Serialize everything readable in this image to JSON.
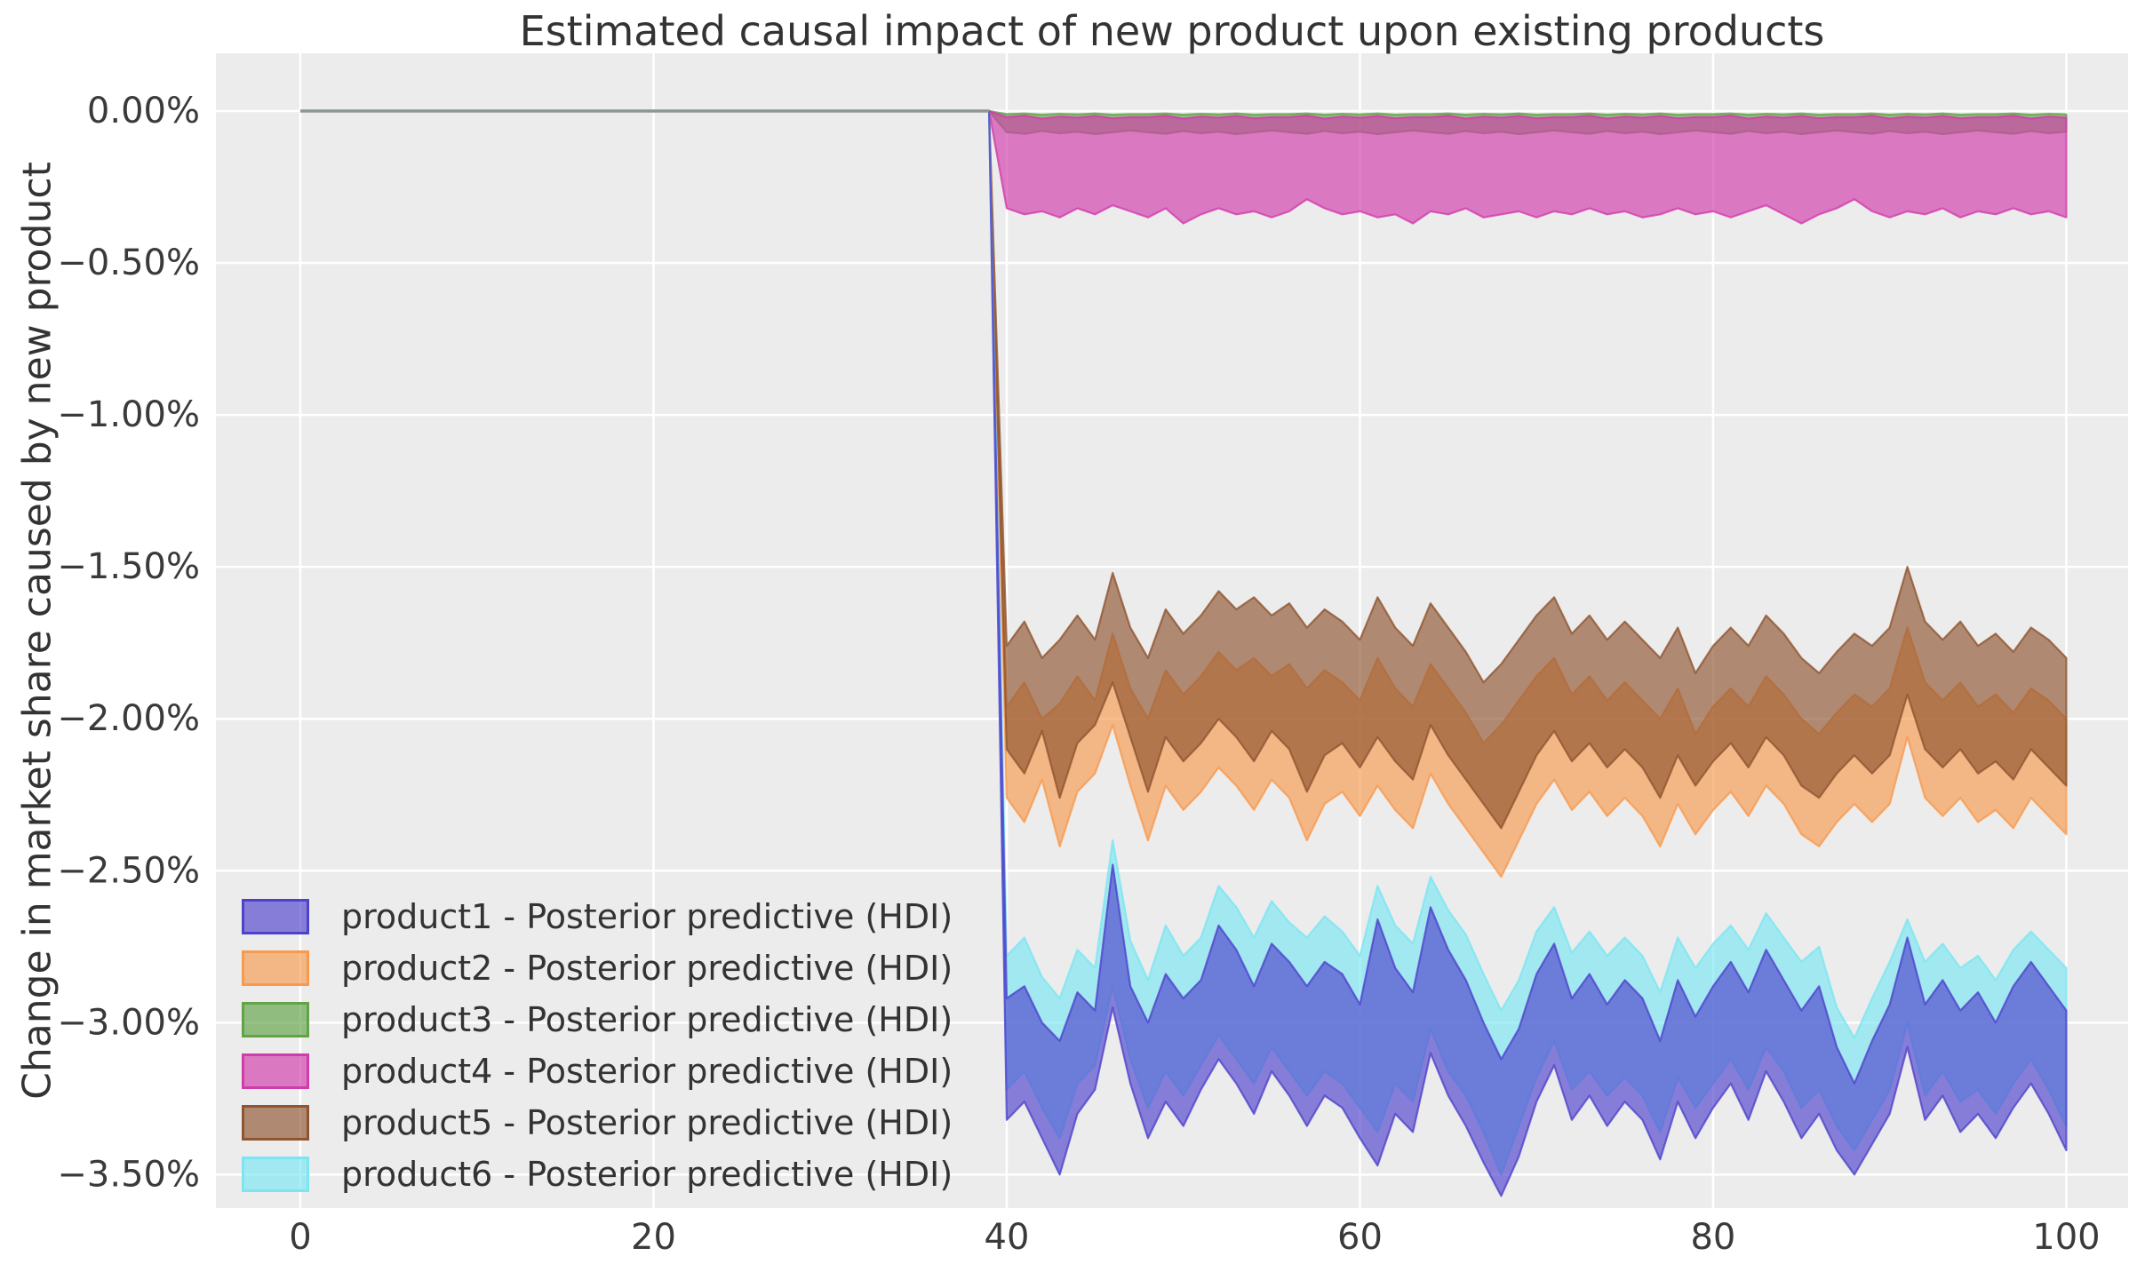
{
  "title": "Estimated causal impact of new product upon existing products",
  "style": {
    "plot_bg": "#ececec",
    "grid_color": "#ffffff",
    "tick_text_color": "#3a3a3a",
    "pre_period_line_color": "#8c9694",
    "fill_alpha": 0.65
  },
  "chart_data": {
    "type": "area",
    "title": "Estimated causal impact of new product upon existing products",
    "ylabel": "Change in market share caused by new product",
    "xlabel": "",
    "grid": true,
    "legend_position": "lower left",
    "xlim": [
      -4.78,
      103.5
    ],
    "ylim": [
      0.19,
      -3.61
    ],
    "x_ticks": {
      "values": [
        0,
        20,
        40,
        60,
        80,
        100
      ],
      "labels": [
        "0",
        "20",
        "40",
        "60",
        "80",
        "100"
      ]
    },
    "y_ticks": {
      "values": [
        0,
        -0.5,
        -1.0,
        -1.5,
        -2.0,
        -2.5,
        -3.0,
        -3.5
      ],
      "labels": [
        "0.00%",
        "−0.50%",
        "−1.00%",
        "−1.50%",
        "−2.00%",
        "−2.50%",
        "−3.00%",
        "−3.50%"
      ]
    },
    "pre_period": {
      "x": [
        0,
        39
      ],
      "y": [
        0,
        0
      ],
      "note": "all series flat at 0.00% before intervention"
    },
    "intervention_x": 39,
    "x": [
      40,
      41,
      42,
      43,
      44,
      45,
      46,
      47,
      48,
      49,
      50,
      51,
      52,
      53,
      54,
      55,
      56,
      57,
      58,
      59,
      60,
      61,
      62,
      63,
      64,
      65,
      66,
      67,
      68,
      69,
      70,
      71,
      72,
      73,
      74,
      75,
      76,
      77,
      78,
      79,
      80,
      81,
      82,
      83,
      84,
      85,
      86,
      87,
      88,
      89,
      90,
      91,
      92,
      93,
      94,
      95,
      96,
      97,
      98,
      99,
      100
    ],
    "draw_order": [
      "product3",
      "product4",
      "product2",
      "product5",
      "product6",
      "product1"
    ],
    "series": [
      {
        "name": "product1",
        "label": "product1 - Posterior predictive (HDI)",
        "color": "#4e42cc",
        "upper": [
          -2.92,
          -2.88,
          -3.0,
          -3.06,
          -2.9,
          -2.96,
          -2.48,
          -2.88,
          -3.0,
          -2.84,
          -2.92,
          -2.86,
          -2.68,
          -2.76,
          -2.88,
          -2.74,
          -2.8,
          -2.88,
          -2.8,
          -2.84,
          -2.94,
          -2.66,
          -2.82,
          -2.9,
          -2.62,
          -2.76,
          -2.86,
          -3.0,
          -3.12,
          -3.02,
          -2.84,
          -2.74,
          -2.92,
          -2.84,
          -2.94,
          -2.86,
          -2.92,
          -3.06,
          -2.86,
          -2.98,
          -2.88,
          -2.8,
          -2.9,
          -2.76,
          -2.86,
          -2.96,
          -2.88,
          -3.08,
          -3.2,
          -3.06,
          -2.94,
          -2.72,
          -2.94,
          -2.86,
          -2.96,
          -2.9,
          -3.0,
          -2.88,
          -2.8,
          -2.88,
          -2.96
        ],
        "lower": [
          -3.32,
          -3.26,
          -3.38,
          -3.5,
          -3.3,
          -3.22,
          -2.95,
          -3.2,
          -3.38,
          -3.26,
          -3.34,
          -3.22,
          -3.12,
          -3.2,
          -3.3,
          -3.16,
          -3.24,
          -3.34,
          -3.24,
          -3.28,
          -3.38,
          -3.47,
          -3.3,
          -3.36,
          -3.1,
          -3.24,
          -3.34,
          -3.46,
          -3.57,
          -3.44,
          -3.26,
          -3.14,
          -3.32,
          -3.24,
          -3.34,
          -3.26,
          -3.32,
          -3.45,
          -3.26,
          -3.38,
          -3.28,
          -3.2,
          -3.32,
          -3.16,
          -3.26,
          -3.38,
          -3.3,
          -3.42,
          -3.5,
          -3.4,
          -3.3,
          -3.08,
          -3.32,
          -3.24,
          -3.36,
          -3.3,
          -3.38,
          -3.28,
          -3.2,
          -3.3,
          -3.42
        ]
      },
      {
        "name": "product2",
        "label": "product2 - Posterior predictive (HDI)",
        "color": "#f89a4e",
        "upper": [
          -1.96,
          -1.88,
          -2.0,
          -1.95,
          -1.86,
          -1.94,
          -1.72,
          -1.9,
          -2.0,
          -1.84,
          -1.92,
          -1.86,
          -1.78,
          -1.84,
          -1.8,
          -1.86,
          -1.82,
          -1.9,
          -1.84,
          -1.88,
          -1.94,
          -1.8,
          -1.9,
          -1.96,
          -1.82,
          -1.9,
          -1.98,
          -2.08,
          -2.02,
          -1.94,
          -1.86,
          -1.8,
          -1.92,
          -1.86,
          -1.94,
          -1.88,
          -1.94,
          -2.0,
          -1.9,
          -2.05,
          -1.96,
          -1.9,
          -1.96,
          -1.86,
          -1.92,
          -2.0,
          -2.05,
          -1.98,
          -1.92,
          -1.96,
          -1.9,
          -1.7,
          -1.88,
          -1.94,
          -1.88,
          -1.96,
          -1.92,
          -1.98,
          -1.9,
          -1.94,
          -2.0
        ],
        "lower": [
          -2.26,
          -2.34,
          -2.2,
          -2.42,
          -2.24,
          -2.18,
          -2.02,
          -2.22,
          -2.4,
          -2.22,
          -2.3,
          -2.24,
          -2.16,
          -2.22,
          -2.3,
          -2.2,
          -2.26,
          -2.4,
          -2.28,
          -2.24,
          -2.32,
          -2.22,
          -2.3,
          -2.36,
          -2.18,
          -2.28,
          -2.36,
          -2.44,
          -2.52,
          -2.4,
          -2.28,
          -2.2,
          -2.3,
          -2.24,
          -2.32,
          -2.26,
          -2.32,
          -2.42,
          -2.28,
          -2.38,
          -2.3,
          -2.24,
          -2.32,
          -2.22,
          -2.28,
          -2.38,
          -2.42,
          -2.34,
          -2.28,
          -2.34,
          -2.28,
          -2.06,
          -2.26,
          -2.32,
          -2.26,
          -2.34,
          -2.3,
          -2.36,
          -2.26,
          -2.32,
          -2.38
        ]
      },
      {
        "name": "product3",
        "label": "product3 - Posterior predictive (HDI)",
        "color": "#60a445",
        "upper": [
          -0.01,
          -0.008,
          -0.012,
          -0.009,
          -0.011,
          -0.008,
          -0.012,
          -0.01,
          -0.01,
          -0.008,
          -0.012,
          -0.009,
          -0.011,
          -0.008,
          -0.012,
          -0.01,
          -0.01,
          -0.008,
          -0.012,
          -0.009,
          -0.011,
          -0.008,
          -0.012,
          -0.01,
          -0.01,
          -0.008,
          -0.012,
          -0.009,
          -0.011,
          -0.008,
          -0.012,
          -0.01,
          -0.01,
          -0.008,
          -0.012,
          -0.009,
          -0.011,
          -0.008,
          -0.012,
          -0.01,
          -0.01,
          -0.008,
          -0.012,
          -0.009,
          -0.011,
          -0.008,
          -0.012,
          -0.01,
          -0.01,
          -0.008,
          -0.012,
          -0.009,
          -0.011,
          -0.008,
          -0.012,
          -0.01,
          -0.01,
          -0.008,
          -0.012,
          -0.009,
          -0.011
        ],
        "lower": [
          -0.07,
          -0.075,
          -0.066,
          -0.073,
          -0.068,
          -0.076,
          -0.07,
          -0.064,
          -0.07,
          -0.075,
          -0.066,
          -0.073,
          -0.068,
          -0.076,
          -0.07,
          -0.064,
          -0.07,
          -0.075,
          -0.066,
          -0.073,
          -0.068,
          -0.076,
          -0.07,
          -0.064,
          -0.07,
          -0.075,
          -0.066,
          -0.073,
          -0.068,
          -0.076,
          -0.07,
          -0.064,
          -0.07,
          -0.075,
          -0.066,
          -0.073,
          -0.068,
          -0.076,
          -0.07,
          -0.064,
          -0.07,
          -0.075,
          -0.066,
          -0.073,
          -0.068,
          -0.076,
          -0.07,
          -0.064,
          -0.07,
          -0.075,
          -0.066,
          -0.073,
          -0.068,
          -0.076,
          -0.07,
          -0.064,
          -0.07,
          -0.075,
          -0.066,
          -0.073,
          -0.068
        ]
      },
      {
        "name": "product4",
        "label": "product4 - Posterior predictive (HDI)",
        "color": "#d23bac",
        "upper": [
          -0.02,
          -0.015,
          -0.025,
          -0.018,
          -0.022,
          -0.016,
          -0.024,
          -0.02,
          -0.02,
          -0.015,
          -0.025,
          -0.018,
          -0.022,
          -0.016,
          -0.024,
          -0.02,
          -0.02,
          -0.015,
          -0.025,
          -0.018,
          -0.022,
          -0.016,
          -0.024,
          -0.02,
          -0.02,
          -0.015,
          -0.025,
          -0.018,
          -0.022,
          -0.016,
          -0.024,
          -0.02,
          -0.02,
          -0.015,
          -0.025,
          -0.018,
          -0.022,
          -0.016,
          -0.024,
          -0.02,
          -0.02,
          -0.015,
          -0.025,
          -0.018,
          -0.022,
          -0.016,
          -0.024,
          -0.02,
          -0.02,
          -0.015,
          -0.025,
          -0.018,
          -0.022,
          -0.016,
          -0.024,
          -0.02,
          -0.02,
          -0.015,
          -0.025,
          -0.018,
          -0.022
        ],
        "lower": [
          -0.32,
          -0.34,
          -0.33,
          -0.35,
          -0.32,
          -0.34,
          -0.31,
          -0.33,
          -0.35,
          -0.32,
          -0.37,
          -0.34,
          -0.32,
          -0.34,
          -0.33,
          -0.35,
          -0.33,
          -0.29,
          -0.32,
          -0.34,
          -0.33,
          -0.35,
          -0.34,
          -0.37,
          -0.33,
          -0.34,
          -0.32,
          -0.35,
          -0.34,
          -0.33,
          -0.35,
          -0.33,
          -0.34,
          -0.32,
          -0.34,
          -0.33,
          -0.35,
          -0.34,
          -0.32,
          -0.34,
          -0.33,
          -0.35,
          -0.33,
          -0.31,
          -0.34,
          -0.37,
          -0.34,
          -0.32,
          -0.29,
          -0.33,
          -0.35,
          -0.33,
          -0.34,
          -0.32,
          -0.35,
          -0.33,
          -0.34,
          -0.32,
          -0.34,
          -0.33,
          -0.35
        ]
      },
      {
        "name": "product5",
        "label": "product5 - Posterior predictive (HDI)",
        "color": "#8f5530",
        "upper": [
          -1.76,
          -1.68,
          -1.8,
          -1.74,
          -1.66,
          -1.74,
          -1.52,
          -1.7,
          -1.8,
          -1.64,
          -1.72,
          -1.66,
          -1.58,
          -1.64,
          -1.6,
          -1.66,
          -1.62,
          -1.7,
          -1.64,
          -1.68,
          -1.74,
          -1.6,
          -1.7,
          -1.76,
          -1.62,
          -1.7,
          -1.78,
          -1.88,
          -1.82,
          -1.74,
          -1.66,
          -1.6,
          -1.72,
          -1.66,
          -1.74,
          -1.68,
          -1.74,
          -1.8,
          -1.7,
          -1.85,
          -1.76,
          -1.7,
          -1.76,
          -1.66,
          -1.72,
          -1.8,
          -1.85,
          -1.78,
          -1.72,
          -1.76,
          -1.7,
          -1.5,
          -1.68,
          -1.74,
          -1.68,
          -1.76,
          -1.72,
          -1.78,
          -1.7,
          -1.74,
          -1.8
        ],
        "lower": [
          -2.1,
          -2.18,
          -2.04,
          -2.26,
          -2.08,
          -2.02,
          -1.88,
          -2.06,
          -2.24,
          -2.06,
          -2.14,
          -2.08,
          -2.0,
          -2.06,
          -2.14,
          -2.04,
          -2.1,
          -2.24,
          -2.12,
          -2.08,
          -2.16,
          -2.06,
          -2.14,
          -2.2,
          -2.02,
          -2.12,
          -2.2,
          -2.28,
          -2.36,
          -2.24,
          -2.12,
          -2.04,
          -2.14,
          -2.08,
          -2.16,
          -2.1,
          -2.16,
          -2.26,
          -2.12,
          -2.22,
          -2.14,
          -2.08,
          -2.16,
          -2.06,
          -2.12,
          -2.22,
          -2.26,
          -2.18,
          -2.12,
          -2.18,
          -2.12,
          -1.92,
          -2.1,
          -2.16,
          -2.1,
          -2.18,
          -2.14,
          -2.2,
          -2.1,
          -2.16,
          -2.22
        ]
      },
      {
        "name": "product6",
        "label": "product6 - Posterior predictive (HDI)",
        "color": "#7be6f2",
        "upper": [
          -2.78,
          -2.72,
          -2.85,
          -2.92,
          -2.76,
          -2.82,
          -2.4,
          -2.73,
          -2.86,
          -2.68,
          -2.78,
          -2.72,
          -2.55,
          -2.62,
          -2.72,
          -2.6,
          -2.67,
          -2.72,
          -2.65,
          -2.7,
          -2.78,
          -2.55,
          -2.68,
          -2.74,
          -2.52,
          -2.63,
          -2.71,
          -2.84,
          -2.96,
          -2.86,
          -2.7,
          -2.62,
          -2.77,
          -2.7,
          -2.78,
          -2.72,
          -2.78,
          -2.9,
          -2.72,
          -2.82,
          -2.74,
          -2.68,
          -2.76,
          -2.64,
          -2.72,
          -2.8,
          -2.75,
          -2.95,
          -3.05,
          -2.92,
          -2.8,
          -2.66,
          -2.8,
          -2.74,
          -2.82,
          -2.78,
          -2.86,
          -2.76,
          -2.7,
          -2.76,
          -2.82
        ],
        "lower": [
          -3.22,
          -3.16,
          -3.28,
          -3.38,
          -3.2,
          -3.14,
          -2.88,
          -3.12,
          -3.28,
          -3.16,
          -3.24,
          -3.14,
          -3.04,
          -3.12,
          -3.2,
          -3.08,
          -3.16,
          -3.24,
          -3.16,
          -3.2,
          -3.28,
          -3.36,
          -3.2,
          -3.26,
          -3.02,
          -3.16,
          -3.24,
          -3.36,
          -3.5,
          -3.34,
          -3.18,
          -3.06,
          -3.22,
          -3.16,
          -3.24,
          -3.18,
          -3.24,
          -3.36,
          -3.18,
          -3.28,
          -3.2,
          -3.12,
          -3.22,
          -3.08,
          -3.16,
          -3.28,
          -3.22,
          -3.34,
          -3.42,
          -3.32,
          -3.22,
          -3.0,
          -3.24,
          -3.16,
          -3.26,
          -3.22,
          -3.3,
          -3.2,
          -3.12,
          -3.22,
          -3.34
        ]
      }
    ]
  }
}
